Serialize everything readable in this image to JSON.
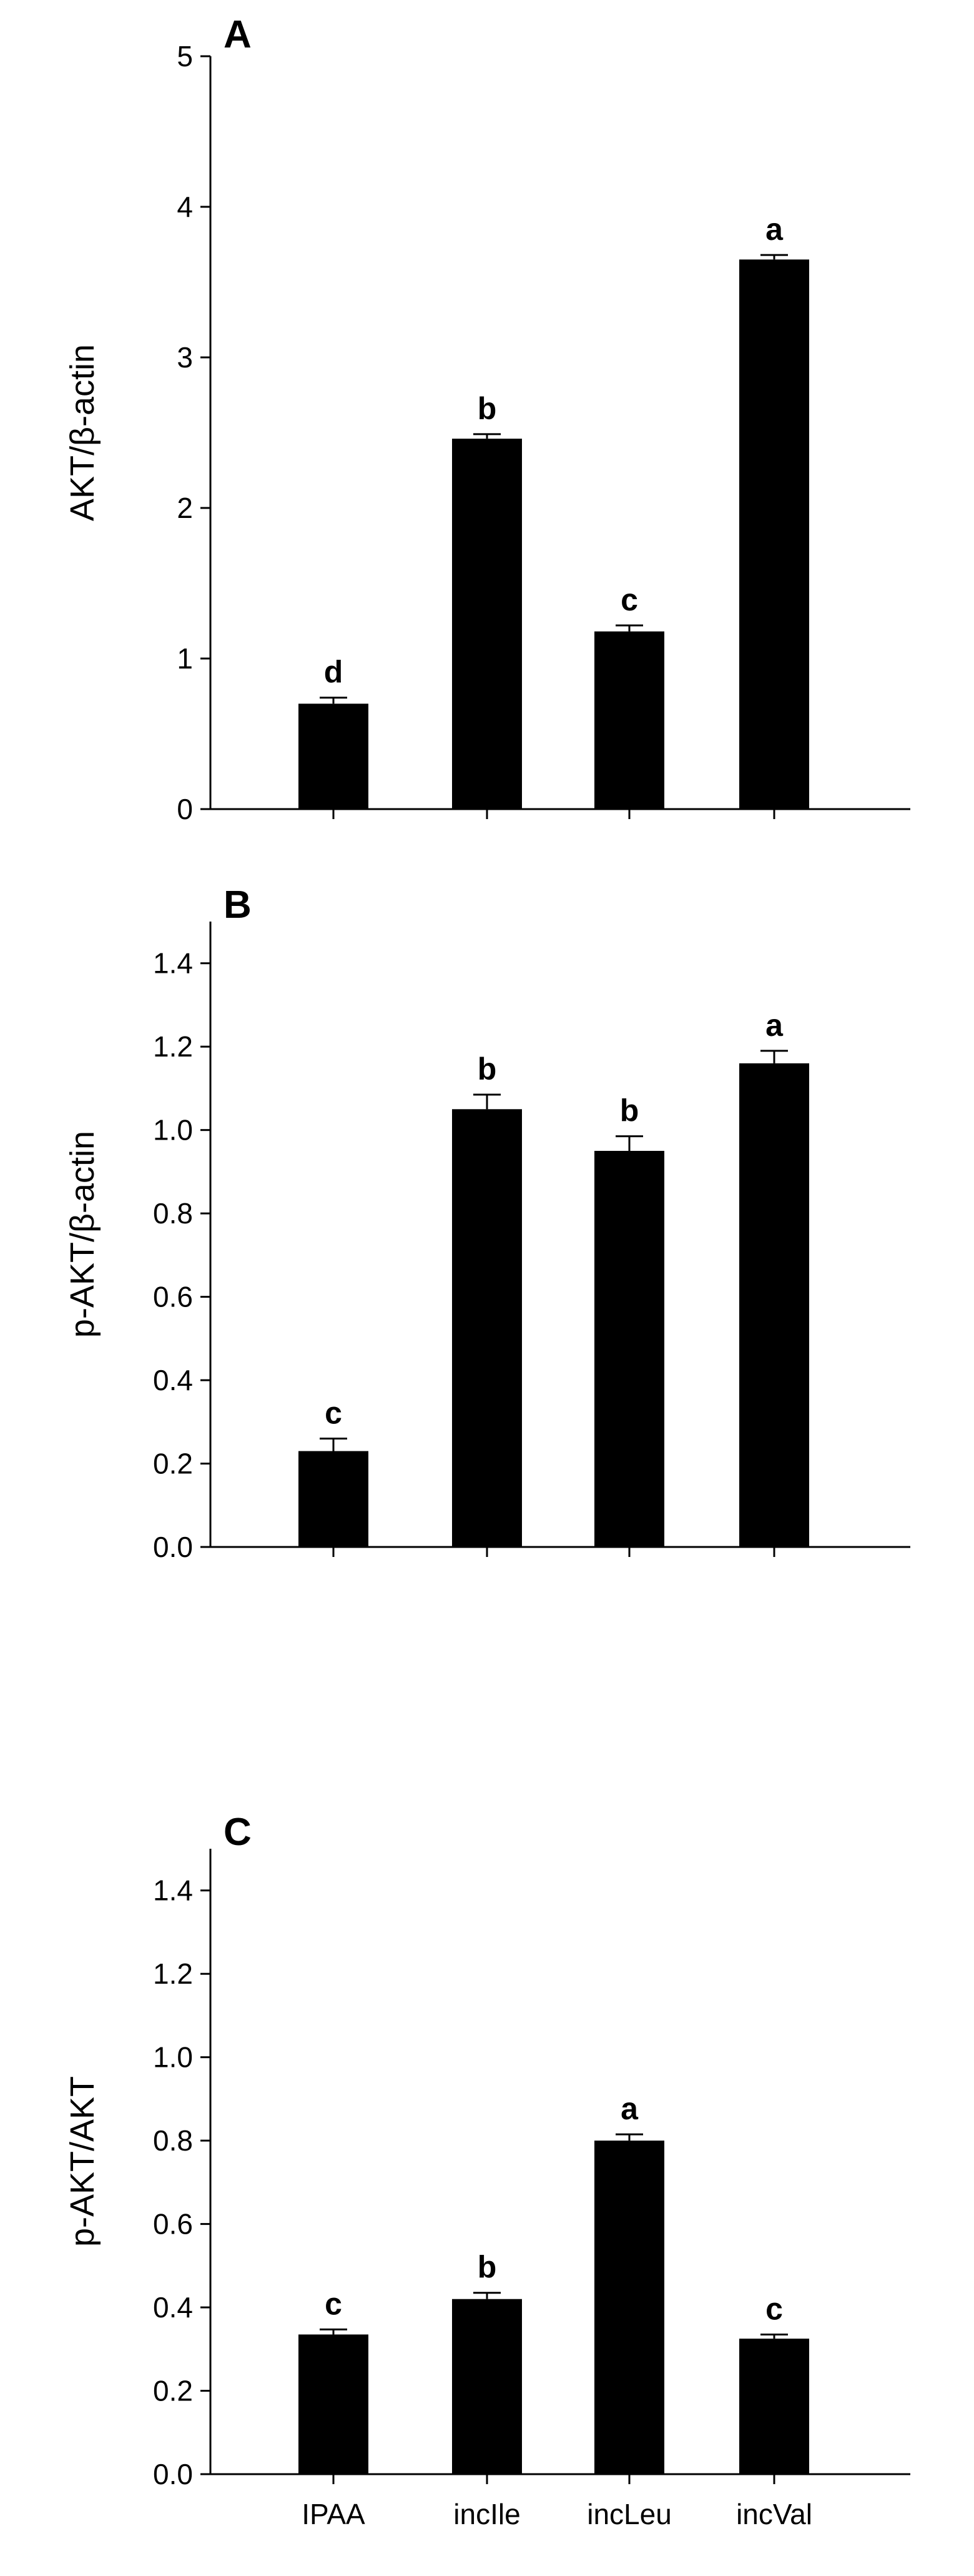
{
  "chart_data": [
    {
      "type": "bar",
      "panel": "A",
      "ylabel": "AKT/β-actin",
      "categories": [
        "IPAA",
        "incIle",
        "incLeu",
        "incVal"
      ],
      "values": [
        0.7,
        2.46,
        1.18,
        3.65
      ],
      "errors": [
        0.04,
        0.03,
        0.04,
        0.03
      ],
      "significance": [
        "d",
        "b",
        "c",
        "a"
      ],
      "ylim": [
        0,
        5
      ],
      "yticks": [
        0,
        1,
        2,
        3,
        4,
        5
      ],
      "ytick_labels": [
        "0",
        "1",
        "2",
        "3",
        "4",
        "5"
      ],
      "show_category_labels": false
    },
    {
      "type": "bar",
      "panel": "B",
      "ylabel": "p-AKT/β-actin",
      "categories": [
        "IPAA",
        "incIle",
        "incLeu",
        "incVal"
      ],
      "values": [
        0.23,
        1.05,
        0.95,
        1.16
      ],
      "errors": [
        0.03,
        0.035,
        0.035,
        0.03
      ],
      "significance": [
        "c",
        "b",
        "b",
        "a"
      ],
      "ylim": [
        0,
        1.5
      ],
      "yticks": [
        0,
        0.2,
        0.4,
        0.6,
        0.8,
        1.0,
        1.2,
        1.4
      ],
      "ytick_labels": [
        "0.0",
        "0.2",
        "0.4",
        "0.6",
        "0.8",
        "1.0",
        "1.2",
        "1.4"
      ],
      "show_category_labels": false
    },
    {
      "type": "bar",
      "panel": "C",
      "ylabel": "p-AKT/AKT",
      "categories": [
        "IPAA",
        "incIle",
        "incLeu",
        "incVal"
      ],
      "values": [
        0.335,
        0.42,
        0.8,
        0.325
      ],
      "errors": [
        0.012,
        0.015,
        0.015,
        0.01
      ],
      "significance": [
        "c",
        "b",
        "a",
        "c"
      ],
      "ylim": [
        0,
        1.5
      ],
      "yticks": [
        0,
        0.2,
        0.4,
        0.6,
        0.8,
        1.0,
        1.2,
        1.4
      ],
      "ytick_labels": [
        "0.0",
        "0.2",
        "0.4",
        "0.6",
        "0.8",
        "1.0",
        "1.2",
        "1.4"
      ],
      "show_category_labels": true
    }
  ]
}
